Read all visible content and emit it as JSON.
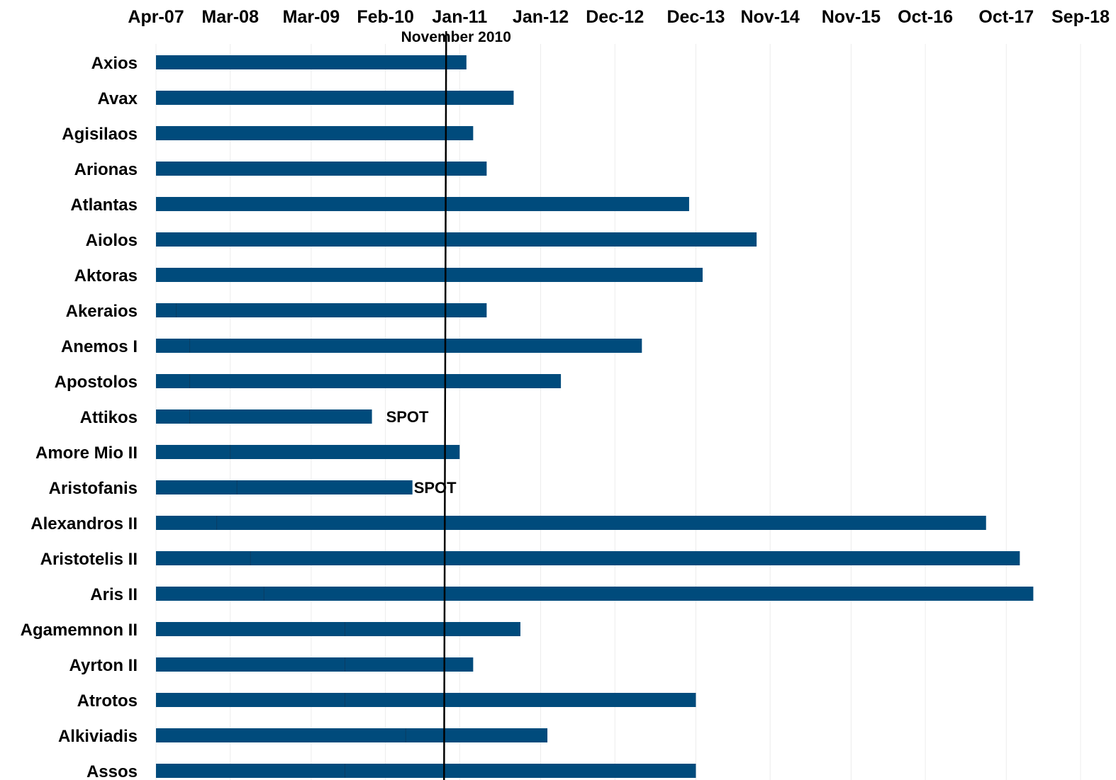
{
  "chart_data": {
    "type": "bar",
    "orientation": "horizontal-timeline",
    "title": "",
    "xlabel": "",
    "ylabel": "",
    "x_axis_position": "top",
    "x_ticks": [
      "Apr-07",
      "Mar-08",
      "Mar-09",
      "Feb-10",
      "Jan-11",
      "Jan-12",
      "Dec-12",
      "Dec-13",
      "Nov-14",
      "Nov-15",
      "Oct-16",
      "Oct-17",
      "Sep-18"
    ],
    "xlim": [
      "Apr-07",
      "Sep-18"
    ],
    "grid": "vertical, light",
    "bar_color": "#004b7c",
    "reference_line": {
      "label": "November 2010",
      "date": "Nov-10"
    },
    "rows": [
      {
        "name": "Axios",
        "start": "Apr-07",
        "split": null,
        "end": "Feb-11",
        "note": ""
      },
      {
        "name": "Avax",
        "start": "Apr-07",
        "split": null,
        "end": "Sep-11",
        "note": ""
      },
      {
        "name": "Agisilaos",
        "start": "Apr-07",
        "split": null,
        "end": "Mar-11",
        "note": ""
      },
      {
        "name": "Arionas",
        "start": "Apr-07",
        "split": null,
        "end": "May-11",
        "note": ""
      },
      {
        "name": "Atlantas",
        "start": "Apr-07",
        "split": null,
        "end": "Nov-13",
        "note": ""
      },
      {
        "name": "Aiolos",
        "start": "Apr-07",
        "split": null,
        "end": "Sep-14",
        "note": ""
      },
      {
        "name": "Aktoras",
        "start": "Apr-07",
        "split": null,
        "end": "Jan-14",
        "note": ""
      },
      {
        "name": "Akeraios",
        "start": "Apr-07",
        "split": "Jul-07",
        "end": "May-11",
        "note": ""
      },
      {
        "name": "Anemos I",
        "start": "Apr-07",
        "split": "Sep-07",
        "end": "Apr-13",
        "note": ""
      },
      {
        "name": "Apostolos",
        "start": "Apr-07",
        "split": "Sep-07",
        "end": "Apr-12",
        "note": ""
      },
      {
        "name": "Attikos",
        "start": "Apr-07",
        "split": "Sep-07",
        "end": "Dec-09",
        "note": "SPOT"
      },
      {
        "name": "Amore Mio II",
        "start": "Apr-07",
        "split": "Mar-08",
        "end": "Jan-11",
        "note": ""
      },
      {
        "name": "Aristofanis",
        "start": "Apr-07",
        "split": "Apr-08",
        "end": "Jun-10",
        "note": "SPOT"
      },
      {
        "name": "Alexandros II",
        "start": "Apr-07",
        "split": "Jan-08",
        "end": "Jul-17",
        "note": ""
      },
      {
        "name": "Aristotelis II",
        "start": "Apr-07",
        "split": "Jun-08",
        "end": "Dec-17",
        "note": ""
      },
      {
        "name": "Aris II",
        "start": "Apr-07",
        "split": "Aug-08",
        "end": "Feb-18",
        "note": ""
      },
      {
        "name": "Agamemnon II",
        "start": "Apr-07",
        "split": "Aug-09",
        "end": "Oct-11",
        "note": ""
      },
      {
        "name": "Ayrton II",
        "start": "Apr-07",
        "split": "Aug-09",
        "end": "Mar-11",
        "note": ""
      },
      {
        "name": "Atrotos",
        "start": "Apr-07",
        "split": "Aug-09",
        "end": "Dec-13",
        "note": ""
      },
      {
        "name": "Alkiviadis",
        "start": "Apr-07",
        "split": "May-10",
        "end": "Feb-12",
        "note": ""
      },
      {
        "name": "Assos",
        "start": "Apr-07",
        "split": "Aug-09",
        "end": "Dec-13",
        "note": ""
      }
    ]
  }
}
